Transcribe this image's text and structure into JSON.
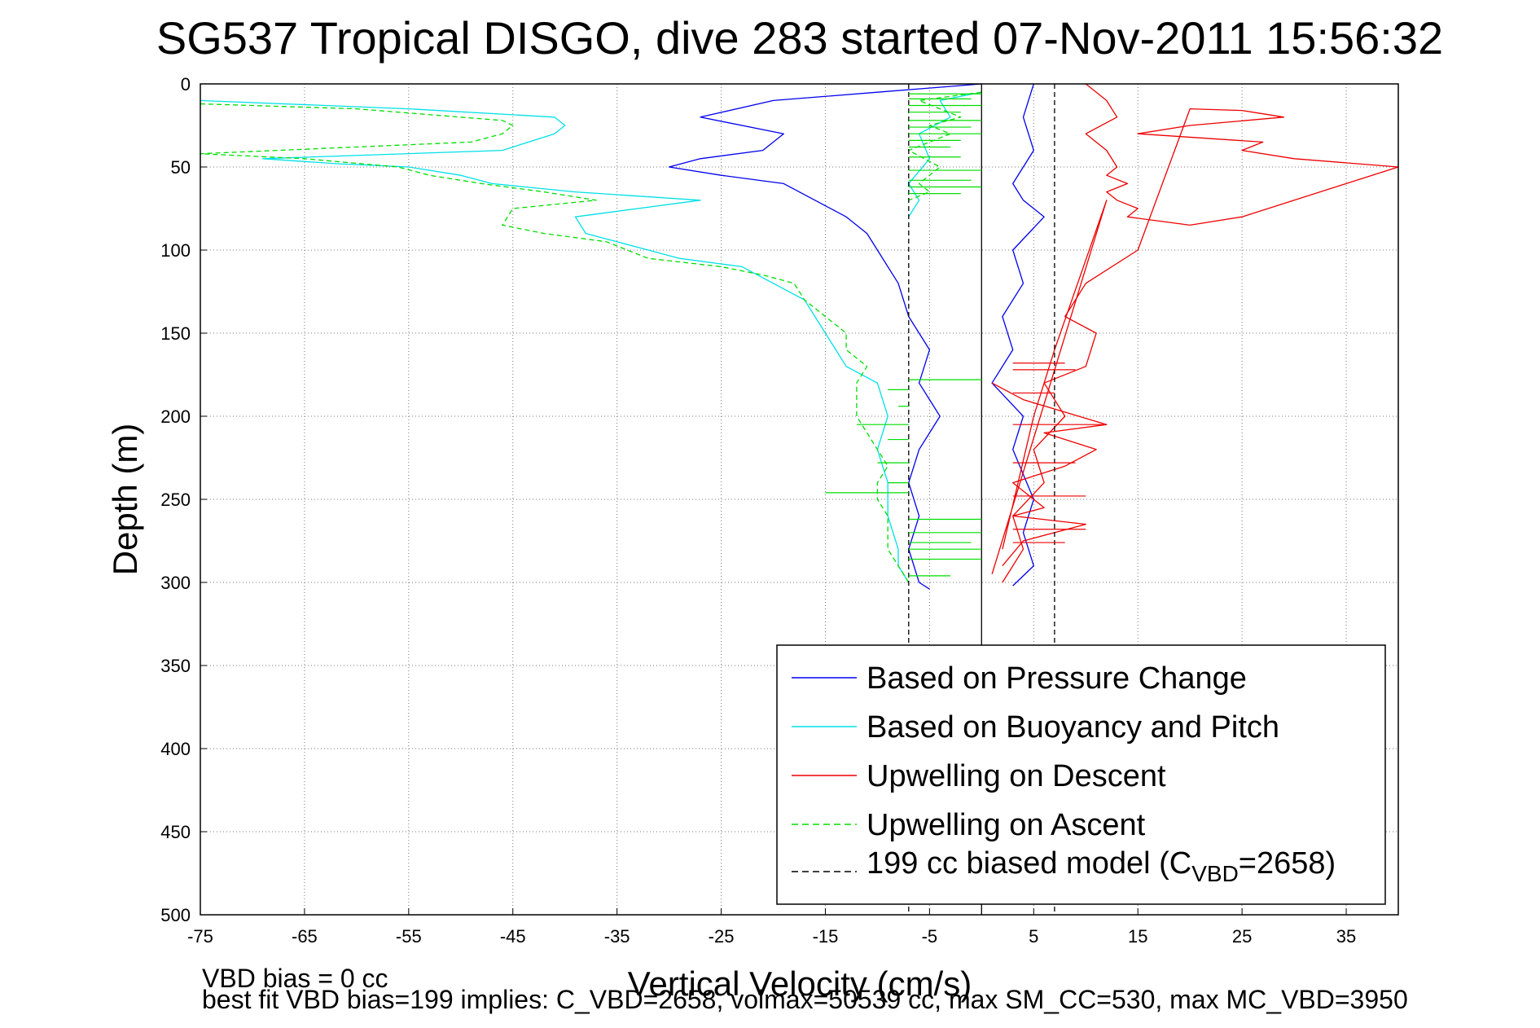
{
  "chart_data": {
    "type": "line",
    "title": "SG537 Tropical DISGO, dive 283 started 07-Nov-2011 15:56:32",
    "xlabel": "Vertical Velocity (cm/s)",
    "ylabel": "Depth (m)",
    "xlim": [
      -75,
      40
    ],
    "ylim": [
      0,
      500
    ],
    "y_reversed": true,
    "grid": true,
    "legend_position": "lower-right",
    "x_ticks": [
      "-75",
      "-65",
      "-55",
      "-45",
      "-35",
      "-25",
      "-15",
      "-5",
      "5",
      "15",
      "25",
      "35"
    ],
    "y_ticks": [
      "0",
      "50",
      "100",
      "150",
      "200",
      "250",
      "300",
      "350",
      "400",
      "450",
      "500"
    ],
    "legend": {
      "pressure": "Based on Pressure Change",
      "buoyancy": "Based on Buoyancy and Pitch",
      "descent": "Upwelling on Descent",
      "ascent": "Upwelling on Ascent",
      "model_prefix": "199 cc biased model (C",
      "model_sub": "VBD",
      "model_suffix": "=2658)"
    },
    "series": [
      {
        "key": "pressure_descent",
        "color": "#0000ee",
        "dashed": false,
        "x": [
          0,
          -10,
          -20,
          -27,
          -19,
          -21,
          -27,
          -30,
          -25,
          -19,
          -16,
          -13,
          -11,
          -10,
          -8,
          -7,
          -5,
          -6,
          -4,
          -6,
          -7,
          -6,
          -7,
          -6,
          -5
        ],
        "y": [
          0,
          5,
          10,
          20,
          30,
          40,
          45,
          50,
          55,
          60,
          70,
          80,
          90,
          100,
          120,
          140,
          160,
          180,
          200,
          220,
          240,
          260,
          280,
          300,
          304
        ]
      },
      {
        "key": "pressure_ascent",
        "color": "#0000ee",
        "dashed": false,
        "x": [
          5,
          4,
          5,
          3,
          4,
          6,
          3,
          4,
          2,
          3,
          1,
          4,
          3,
          5,
          4,
          5,
          3
        ],
        "y": [
          0,
          20,
          40,
          60,
          70,
          80,
          100,
          120,
          140,
          160,
          180,
          200,
          220,
          250,
          270,
          290,
          302
        ]
      },
      {
        "key": "buoyancy_descent",
        "color": "#00e0e8",
        "dashed": false,
        "x": [
          -75,
          -55,
          -41,
          -40,
          -41,
          -46,
          -69,
          -62,
          -55,
          -50,
          -47,
          -39,
          -27,
          -39,
          -38,
          -32,
          -29,
          -23,
          -20,
          -17,
          -15,
          -14,
          -13,
          -10,
          -9,
          -10,
          -9,
          -9,
          -8,
          -8,
          -7
        ],
        "y": [
          10,
          15,
          20,
          25,
          30,
          40,
          45,
          48,
          50,
          55,
          60,
          65,
          70,
          80,
          90,
          100,
          105,
          110,
          120,
          130,
          150,
          160,
          170,
          180,
          200,
          220,
          240,
          260,
          280,
          290,
          300
        ]
      },
      {
        "key": "buoyancy_ascent",
        "color": "#00e0e8",
        "dashed": false,
        "x": [
          0,
          -4,
          -3,
          -6,
          -5,
          -7,
          -6,
          -7
        ],
        "y": [
          5,
          10,
          20,
          30,
          45,
          60,
          70,
          80
        ]
      },
      {
        "key": "upwelling_descent",
        "color": "#ee0000",
        "dashed": false,
        "x": [
          10,
          12,
          13,
          10,
          12,
          13,
          12,
          14,
          12,
          13,
          15,
          14,
          20,
          25,
          35,
          40,
          30,
          25,
          27,
          15,
          20,
          29,
          27,
          25,
          20,
          15,
          10,
          8,
          11,
          10,
          6,
          8,
          5,
          6,
          3,
          4,
          2
        ],
        "y": [
          0,
          10,
          20,
          30,
          40,
          50,
          55,
          60,
          65,
          70,
          75,
          80,
          85,
          80,
          60,
          50,
          45,
          40,
          35,
          30,
          25,
          20,
          18,
          16,
          15,
          100,
          120,
          140,
          150,
          170,
          180,
          200,
          220,
          240,
          260,
          280,
          300
        ]
      },
      {
        "key": "upwelling_descent_b",
        "color": "#ee0000",
        "dashed": false,
        "x": [
          1,
          4,
          12,
          6,
          11,
          8,
          3,
          5,
          6,
          3,
          10,
          4,
          2
        ],
        "y": [
          180,
          190,
          205,
          210,
          220,
          230,
          240,
          250,
          255,
          260,
          265,
          275,
          290
        ]
      },
      {
        "key": "upwelling_descent_c",
        "color": "#ee0000",
        "dashed": false,
        "x": [
          1,
          12,
          7,
          5,
          2
        ],
        "y": [
          295,
          70,
          160,
          200,
          280
        ]
      },
      {
        "key": "upwelling_ascent",
        "color": "#00dd00",
        "dashed": true,
        "x": [
          -75,
          -60,
          -46,
          -45,
          -46,
          -49,
          -75,
          -65,
          -56,
          -53,
          -48,
          -42,
          -37,
          -45,
          -46,
          -42,
          -36,
          -34,
          -32,
          -25,
          -21,
          -18,
          -17,
          -15,
          -13,
          -13,
          -11,
          -12,
          -12,
          -10,
          -9,
          -10,
          -10,
          -9,
          -9,
          -8,
          -7
        ],
        "y": [
          12,
          15,
          22,
          25,
          30,
          35,
          42,
          45,
          50,
          55,
          60,
          65,
          70,
          75,
          85,
          90,
          95,
          100,
          105,
          110,
          115,
          120,
          130,
          140,
          150,
          160,
          170,
          180,
          200,
          220,
          230,
          240,
          250,
          260,
          280,
          290,
          300
        ]
      },
      {
        "key": "upwelling_ascent_b",
        "color": "#00dd00",
        "dashed": true,
        "x": [
          0,
          -6,
          -2,
          -5,
          -3,
          -7,
          -4,
          -6,
          -5,
          -7
        ],
        "y": [
          5,
          10,
          20,
          25,
          30,
          40,
          50,
          60,
          65,
          70
        ]
      },
      {
        "key": "model_left",
        "color": "#000000",
        "dashed": true,
        "x": [
          -7,
          -7
        ],
        "y": [
          0,
          500
        ]
      },
      {
        "key": "model_right",
        "color": "#000000",
        "dashed": true,
        "x": [
          7,
          7
        ],
        "y": [
          0,
          500
        ]
      },
      {
        "key": "zero_line",
        "color": "#000000",
        "dashed": false,
        "x": [
          0,
          0
        ],
        "y": [
          0,
          500
        ]
      }
    ],
    "spikes": {
      "ascent_green": {
        "color": "#00dd00",
        "from": -7,
        "depths": [
          6,
          9,
          13,
          17,
          22,
          26,
          30,
          34,
          38,
          44,
          52,
          58,
          62,
          66,
          178,
          184,
          194,
          205,
          214,
          228,
          240,
          246,
          262,
          270,
          276,
          280,
          286,
          296
        ],
        "to": [
          0,
          -1,
          0,
          -2,
          0,
          -1,
          0,
          -2,
          -3,
          -2,
          0,
          -1,
          0,
          -2,
          0,
          -9,
          -8,
          -12,
          -9,
          -10,
          -9,
          -15,
          0,
          0,
          -1,
          0,
          0,
          -3
        ]
      },
      "descent_red": {
        "color": "#ee0000",
        "from": 3,
        "depths": [
          168,
          172,
          186,
          205,
          228,
          248,
          268,
          276
        ],
        "to": [
          8,
          9,
          7,
          12,
          9,
          10,
          10,
          8
        ]
      }
    }
  },
  "notes": {
    "line1": "VBD bias = 0 cc",
    "line2": "best fit VBD bias=199 implies: C_VBD=2658, volmax=50539 cc, max SM_CC=530, max MC_VBD=3950"
  }
}
